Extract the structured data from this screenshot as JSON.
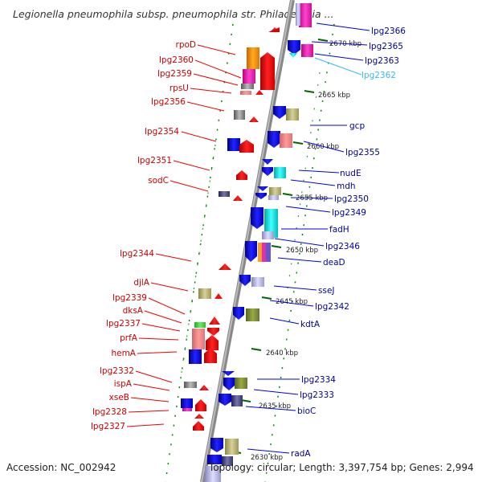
{
  "title": "Legionella pneumophila subsp. pneumophila str. Philadelphia ...",
  "footer": {
    "accession": "Accession: NC_002942",
    "summary": "Topology: circular; Length: 3,397,754 bp; Genes: 2,994"
  },
  "kbp_ticks": [
    "2670 kbp",
    "2665 kbp",
    "2660 kbp",
    "2655 kbp",
    "2650 kbp",
    "2645 kbp",
    "2640 kbp",
    "2635 kbp",
    "2630 kbp"
  ],
  "left_genes": [
    "rpoD",
    "lpg2360",
    "lpg2359",
    "rpsU",
    "lpg2356",
    "lpg2354",
    "lpg2351",
    "sodC",
    "lpg2344",
    "djlA",
    "lpg2339",
    "dksA",
    "lpg2337",
    "prfA",
    "hemA",
    "lpg2332",
    "ispA",
    "xseB",
    "lpg2328",
    "lpg2327"
  ],
  "right_genes": [
    "lpg2366",
    "lpg2365",
    "lpg2363",
    "lpg2362",
    "gcp",
    "lpg2355",
    "nudE",
    "mdh",
    "lpg2350",
    "lpg2349",
    "fadH",
    "lpg2346",
    "deaD",
    "sseJ",
    "lpg2342",
    "kdtA",
    "lpg2334",
    "lpg2333",
    "bioC",
    "radA"
  ],
  "colors": {
    "forward_strand": "#ee1111",
    "reverse_strand": "#1111ee",
    "backbone": "#999999",
    "tick": "#008800",
    "left_label": "#cc0000",
    "right_label": "#000099",
    "highlight_label": "#33bbee"
  }
}
